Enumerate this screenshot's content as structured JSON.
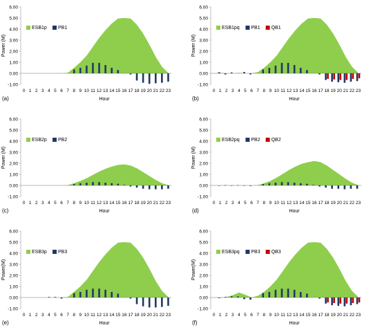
{
  "colors": {
    "area": "#8fce4c",
    "pb": "#1f3864",
    "qb": "#c00000"
  },
  "common": {
    "x": [
      0,
      1,
      2,
      3,
      4,
      5,
      6,
      7,
      8,
      9,
      10,
      11,
      12,
      13,
      14,
      15,
      16,
      17,
      18,
      19,
      20,
      21,
      22,
      23
    ],
    "yticks": [
      "6.00",
      "5.00",
      "4.00",
      "3.00",
      "2.00",
      "1.00",
      "0.00",
      "-1.00"
    ],
    "ylim": [
      -1,
      6
    ]
  },
  "chart_data": [
    {
      "type": "area",
      "panel_label": "(a)",
      "xlabel": "Hour",
      "ylabel": "Power (M)",
      "legend_position": "top-left",
      "series": [
        {
          "name": "ESB1p",
          "kind": "area",
          "values": [
            0,
            0,
            0,
            0,
            0,
            0,
            0,
            0.05,
            0.5,
            1.0,
            1.6,
            2.4,
            3.2,
            3.9,
            4.5,
            4.95,
            5.0,
            4.95,
            4.4,
            3.6,
            2.6,
            1.5,
            0.6,
            0.05
          ]
        },
        {
          "name": "PB1",
          "kind": "bar",
          "values": [
            0,
            0,
            0,
            0,
            0,
            0,
            0,
            0,
            0.35,
            0.5,
            0.7,
            0.95,
            0.95,
            0.75,
            0.5,
            0.3,
            0,
            -0.1,
            -0.65,
            -0.85,
            -0.95,
            -0.9,
            -0.85,
            -0.75
          ]
        }
      ]
    },
    {
      "type": "area",
      "panel_label": "(b)",
      "xlabel": "Hour",
      "ylabel": "Power (M)",
      "legend_position": "top-left",
      "series": [
        {
          "name": "ESB1pq",
          "kind": "area",
          "values": [
            0,
            0.05,
            0,
            0,
            0.05,
            0,
            0,
            0.1,
            0.5,
            1.0,
            1.6,
            2.4,
            3.2,
            3.9,
            4.5,
            4.95,
            5.0,
            4.95,
            4.4,
            3.6,
            2.6,
            1.5,
            0.6,
            0.05
          ]
        },
        {
          "name": "PB1",
          "kind": "bar",
          "values": [
            0,
            0.1,
            -0.1,
            0.08,
            0,
            0.12,
            -0.1,
            0,
            0.35,
            0.5,
            0.7,
            0.95,
            0.95,
            0.75,
            0.5,
            0.3,
            0,
            -0.1,
            -0.6,
            -0.75,
            -0.8,
            -0.85,
            -0.75,
            -0.7
          ]
        },
        {
          "name": "QB1",
          "kind": "bar",
          "values": [
            0,
            0,
            0,
            0,
            0,
            0,
            0,
            0,
            0,
            0,
            0,
            0,
            0,
            0,
            0,
            0,
            0,
            0,
            -0.5,
            -0.55,
            -0.6,
            -0.6,
            -0.5,
            -0.45
          ]
        }
      ]
    },
    {
      "type": "area",
      "panel_label": "(c)",
      "xlabel": "Hour",
      "ylabel": "Power (M)",
      "legend_position": "top-left",
      "series": [
        {
          "name": "ESB2p",
          "kind": "area",
          "values": [
            0,
            0,
            0,
            0,
            0,
            0,
            0,
            0.02,
            0.2,
            0.4,
            0.65,
            0.95,
            1.25,
            1.5,
            1.7,
            1.85,
            1.9,
            1.8,
            1.55,
            1.2,
            0.85,
            0.5,
            0.2,
            0.02
          ]
        },
        {
          "name": "PB2",
          "kind": "bar",
          "values": [
            0,
            0,
            0,
            0,
            0,
            0,
            0,
            0,
            0.12,
            0.2,
            0.25,
            0.3,
            0.3,
            0.25,
            0.2,
            0.15,
            0.05,
            -0.1,
            -0.2,
            -0.3,
            -0.35,
            -0.35,
            -0.35,
            -0.3
          ]
        }
      ]
    },
    {
      "type": "area",
      "panel_label": "(d)",
      "xlabel": "Hour",
      "ylabel": "Power (M)",
      "legend_position": "top-left",
      "series": [
        {
          "name": "ESB2pq",
          "kind": "area",
          "values": [
            0,
            0,
            0,
            0,
            0,
            0,
            0,
            0.02,
            0.2,
            0.4,
            0.7,
            1.05,
            1.4,
            1.7,
            1.95,
            2.1,
            2.2,
            2.1,
            1.8,
            1.4,
            1.0,
            0.6,
            0.25,
            0.02
          ]
        },
        {
          "name": "PB2",
          "kind": "bar",
          "values": [
            0,
            -0.03,
            0.03,
            -0.03,
            0.02,
            -0.03,
            -0.05,
            0,
            0.12,
            0.2,
            0.25,
            0.3,
            0.3,
            0.25,
            0.2,
            0.15,
            0.05,
            -0.1,
            -0.2,
            -0.3,
            -0.3,
            -0.35,
            -0.3,
            -0.3
          ]
        },
        {
          "name": "QB2",
          "kind": "bar",
          "values": [
            0,
            0,
            0,
            0,
            0,
            0,
            0,
            0,
            0,
            0,
            0,
            0,
            0,
            0,
            0,
            0,
            0,
            0,
            0,
            0,
            0,
            0,
            0,
            0
          ]
        }
      ]
    },
    {
      "type": "area",
      "panel_label": "(e)",
      "xlabel": "Hour",
      "ylabel": "Power(M)",
      "legend_position": "top-left",
      "series": [
        {
          "name": "ESB3p",
          "kind": "area",
          "values": [
            0,
            0,
            0,
            0,
            0,
            0,
            0,
            0.05,
            0.5,
            1.0,
            1.6,
            2.4,
            3.2,
            3.9,
            4.5,
            4.95,
            5.0,
            4.95,
            4.4,
            3.6,
            2.6,
            1.5,
            0.6,
            0.05
          ]
        },
        {
          "name": "PB3",
          "kind": "bar",
          "values": [
            0,
            0,
            0,
            0,
            0.05,
            0.05,
            -0.1,
            0,
            0.4,
            0.5,
            0.7,
            0.8,
            0.8,
            0.7,
            0.5,
            0.35,
            0,
            -0.1,
            -0.6,
            -0.8,
            -0.9,
            -0.9,
            -0.85,
            -0.75
          ]
        }
      ]
    },
    {
      "type": "area",
      "panel_label": "(f)",
      "xlabel": "Hour",
      "ylabel": "Power(M)",
      "legend_position": "top-left",
      "series": [
        {
          "name": "ESB3pq",
          "kind": "area",
          "values": [
            0,
            -0.05,
            0.05,
            0.2,
            0.45,
            0.25,
            0,
            0.15,
            0.5,
            1.0,
            1.6,
            2.4,
            3.2,
            3.9,
            4.5,
            4.95,
            5.0,
            4.95,
            4.4,
            3.6,
            2.6,
            1.5,
            0.6,
            0.05
          ]
        },
        {
          "name": "PB3",
          "kind": "bar",
          "values": [
            0,
            -0.05,
            0.05,
            0.1,
            0.1,
            -0.15,
            -0.2,
            0,
            0.4,
            0.5,
            0.7,
            0.8,
            0.8,
            0.7,
            0.5,
            0.35,
            0,
            -0.1,
            -0.55,
            -0.7,
            -0.75,
            -0.8,
            -0.7,
            -0.6
          ]
        },
        {
          "name": "QB3",
          "kind": "bar",
          "values": [
            0,
            0,
            0,
            0,
            0,
            0,
            0,
            0,
            0,
            0,
            0,
            0,
            0,
            0,
            0,
            0,
            0,
            0,
            -0.45,
            -0.5,
            -0.55,
            -0.55,
            -0.5,
            -0.45
          ]
        }
      ]
    }
  ]
}
